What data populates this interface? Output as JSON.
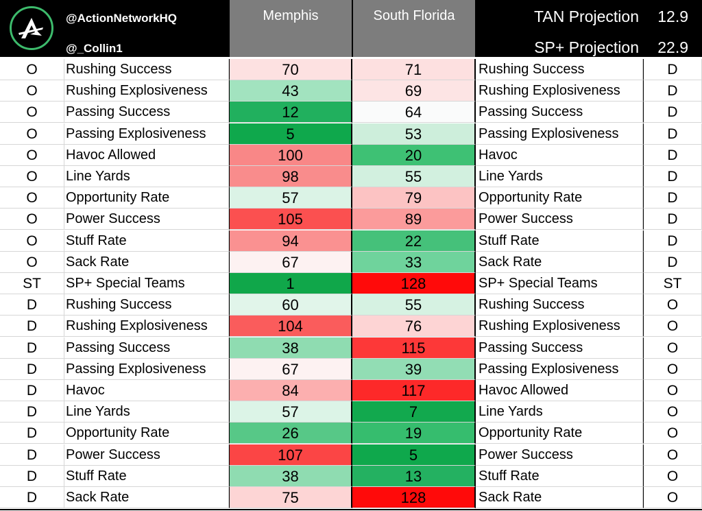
{
  "header": {
    "handle_primary": "@ActionNetworkHQ",
    "handle_secondary": "@_Collin1",
    "team_a": "Memphis",
    "team_b": "South Florida",
    "projections": [
      {
        "label": "TAN Projection",
        "value": "12.9"
      },
      {
        "label": "SP+ Projection",
        "value": "22.9"
      }
    ]
  },
  "rows": [
    {
      "side": "O",
      "metric": "Rushing Success",
      "memphis": "70",
      "memphis_color": "#fde1e1",
      "usf": "71",
      "usf_color": "#fde0e0",
      "opp_metric": "Rushing Success",
      "opp_side": "D"
    },
    {
      "side": "O",
      "metric": "Rushing Explosiveness",
      "memphis": "43",
      "memphis_color": "#a2e3bf",
      "usf": "69",
      "usf_color": "#fde4e4",
      "opp_metric": "Rushing Explosiveness",
      "opp_side": "D"
    },
    {
      "side": "O",
      "metric": "Passing Success",
      "memphis": "12",
      "memphis_color": "#21b05e",
      "usf": "64",
      "usf_color": "#fafbfb",
      "opp_metric": "Passing Success",
      "opp_side": "D"
    },
    {
      "side": "O",
      "metric": "Passing Explosiveness",
      "memphis": "5",
      "memphis_color": "#0fa84c",
      "usf": "53",
      "usf_color": "#cdeedb",
      "opp_metric": "Passing Explosiveness",
      "opp_side": "D"
    },
    {
      "side": "O",
      "metric": "Havoc Allowed",
      "memphis": "100",
      "memphis_color": "#f98787",
      "usf": "20",
      "usf_color": "#3ec174",
      "opp_metric": "Havoc",
      "opp_side": "D"
    },
    {
      "side": "O",
      "metric": "Line Yards",
      "memphis": "98",
      "memphis_color": "#f98c8c",
      "usf": "55",
      "usf_color": "#d2f0df",
      "opp_metric": "Line Yards",
      "opp_side": "D"
    },
    {
      "side": "O",
      "metric": "Opportunity Rate",
      "memphis": "57",
      "memphis_color": "#dbf3e6",
      "usf": "79",
      "usf_color": "#fcc3c3",
      "opp_metric": "Opportunity Rate",
      "opp_side": "D"
    },
    {
      "side": "O",
      "metric": "Power Success",
      "memphis": "105",
      "memphis_color": "#fb5050",
      "usf": "89",
      "usf_color": "#fb9b9b",
      "opp_metric": "Power Success",
      "opp_side": "D"
    },
    {
      "side": "O",
      "metric": "Stuff Rate",
      "memphis": "94",
      "memphis_color": "#fa9191",
      "usf": "22",
      "usf_color": "#45c17a",
      "opp_metric": "Stuff Rate",
      "opp_side": "D"
    },
    {
      "side": "O",
      "metric": "Sack Rate",
      "memphis": "67",
      "memphis_color": "#fdf2f2",
      "usf": "33",
      "usf_color": "#6fd39c",
      "opp_metric": "Sack Rate",
      "opp_side": "D"
    },
    {
      "side": "ST",
      "metric": "SP+ Special Teams",
      "memphis": "1",
      "memphis_color": "#10a74a",
      "usf": "128",
      "usf_color": "#ff0a0a",
      "opp_metric": "SP+ Special Teams",
      "opp_side": "ST"
    },
    {
      "side": "D",
      "metric": "Rushing Success",
      "memphis": "60",
      "memphis_color": "#e1f5ea",
      "usf": "55",
      "usf_color": "#d6f2e2",
      "opp_metric": "Rushing Success",
      "opp_side": "O"
    },
    {
      "side": "D",
      "metric": "Rushing Explosiveness",
      "memphis": "104",
      "memphis_color": "#fa5c5c",
      "usf": "76",
      "usf_color": "#fdd4d4",
      "opp_metric": "Rushing Explosiveness",
      "opp_side": "O"
    },
    {
      "side": "D",
      "metric": "Passing Success",
      "memphis": "38",
      "memphis_color": "#8fdcb1",
      "usf": "115",
      "usf_color": "#fd3838",
      "opp_metric": "Passing Success",
      "opp_side": "O"
    },
    {
      "side": "D",
      "metric": "Passing Explosiveness",
      "memphis": "67",
      "memphis_color": "#fdf2f2",
      "usf": "39",
      "usf_color": "#92ddb4",
      "opp_metric": "Passing Explosiveness",
      "opp_side": "O"
    },
    {
      "side": "D",
      "metric": "Havoc",
      "memphis": "84",
      "memphis_color": "#fcafaf",
      "usf": "117",
      "usf_color": "#fd2929",
      "opp_metric": "Havoc Allowed",
      "opp_side": "O"
    },
    {
      "side": "D",
      "metric": "Line Yards",
      "memphis": "57",
      "memphis_color": "#dcf4e7",
      "usf": "7",
      "usf_color": "#12a94e",
      "opp_metric": "Line Yards",
      "opp_side": "O"
    },
    {
      "side": "D",
      "metric": "Opportunity Rate",
      "memphis": "26",
      "memphis_color": "#57c887",
      "usf": "19",
      "usf_color": "#36bd6e",
      "opp_metric": "Opportunity Rate",
      "opp_side": "O"
    },
    {
      "side": "D",
      "metric": "Power Success",
      "memphis": "107",
      "memphis_color": "#fb4545",
      "usf": "5",
      "usf_color": "#0fa84c",
      "opp_metric": "Power Success",
      "opp_side": "O"
    },
    {
      "side": "D",
      "metric": "Stuff Rate",
      "memphis": "38",
      "memphis_color": "#8fdcb1",
      "usf": "13",
      "usf_color": "#24b161",
      "opp_metric": "Stuff Rate",
      "opp_side": "O"
    },
    {
      "side": "D",
      "metric": "Sack Rate",
      "memphis": "75",
      "memphis_color": "#fdd5d5",
      "usf": "128",
      "usf_color": "#ff0a0a",
      "opp_metric": "Sack Rate",
      "opp_side": "O"
    }
  ]
}
